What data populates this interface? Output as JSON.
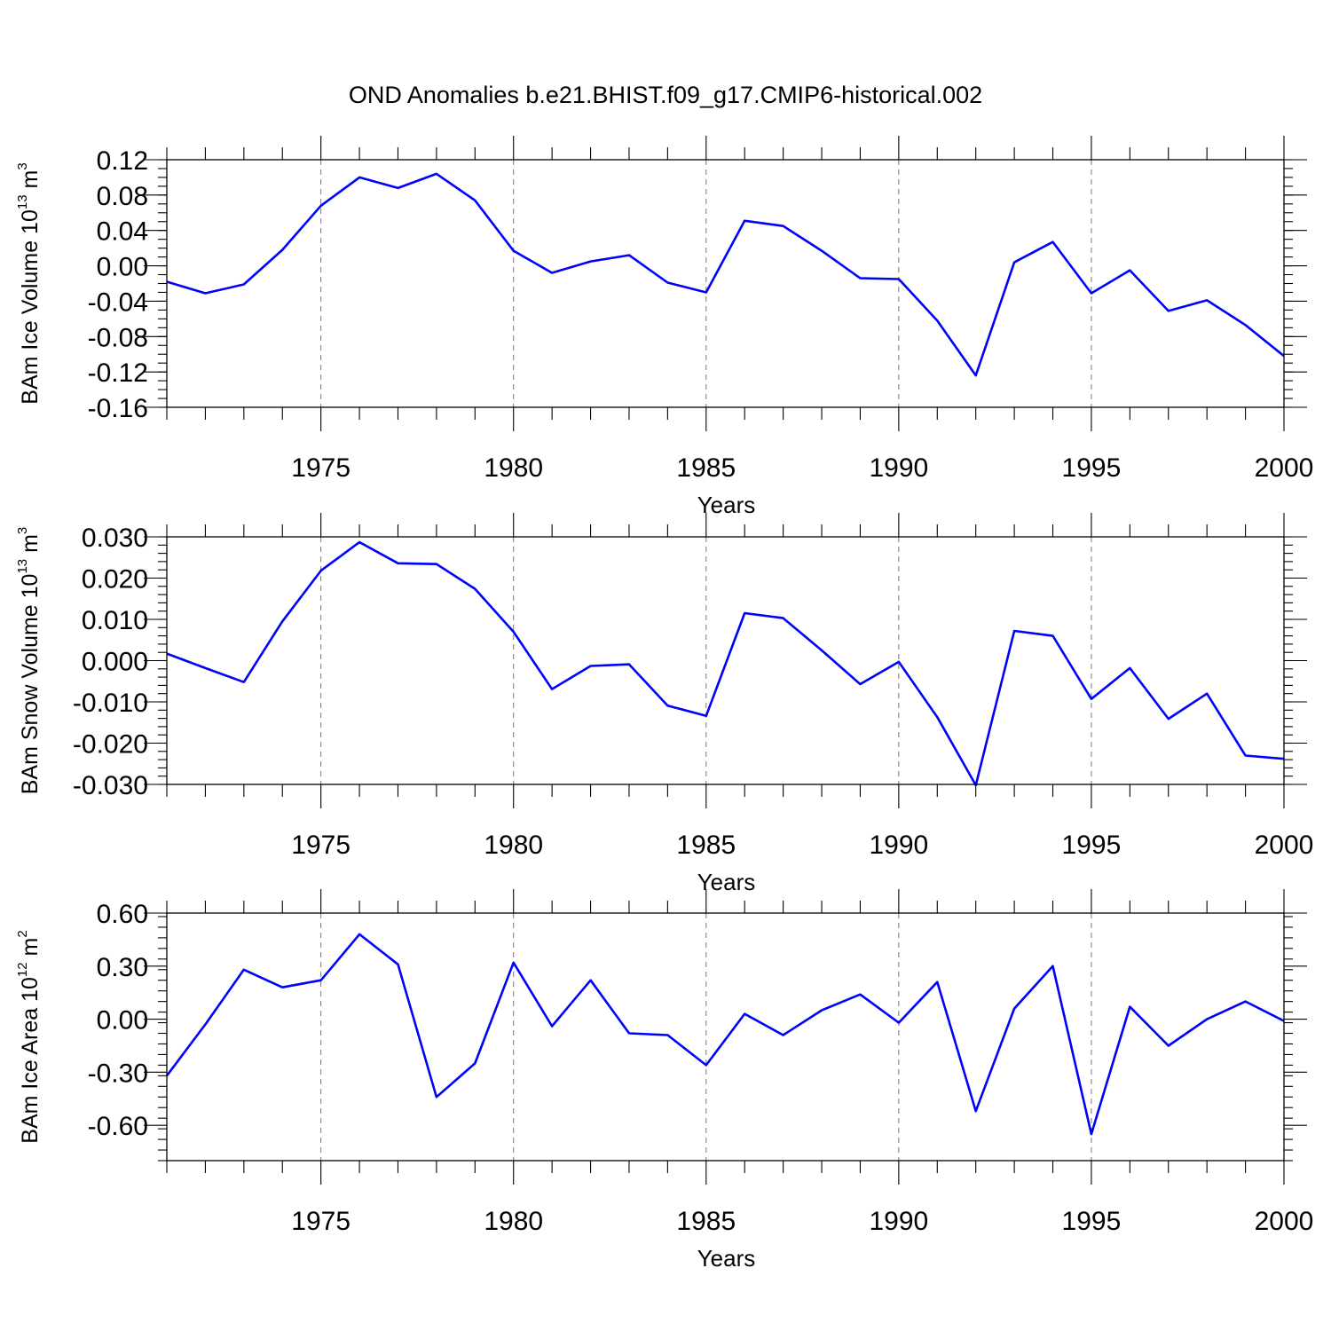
{
  "title": "OND Anomalies b.e21.BHIST.f09_g17.CMIP6-historical.002",
  "chart_data": [
    {
      "type": "line",
      "ylabel": "BAm Ice Volume 10",
      "ylabel_exp": "13",
      "ylabel_unit": " m",
      "ylabel_unit_exp": "3",
      "xlabel": "Years",
      "xlim": [
        1971,
        2000
      ],
      "ylim": [
        -0.16,
        0.12
      ],
      "xticks": [
        "1975",
        "1980",
        "1985",
        "1990",
        "1995",
        "2000"
      ],
      "yticks": [
        "0.12",
        "0.08",
        "0.04",
        "0.00",
        "-0.04",
        "-0.08",
        "-0.12",
        "-0.16"
      ],
      "line_color": "#0000ff",
      "x": [
        1971,
        1972,
        1973,
        1974,
        1975,
        1976,
        1977,
        1978,
        1979,
        1980,
        1981,
        1982,
        1983,
        1984,
        1985,
        1986,
        1987,
        1988,
        1989,
        1990,
        1991,
        1992,
        1993,
        1994,
        1995,
        1996,
        1997,
        1998,
        1999,
        2000
      ],
      "values": [
        -0.018,
        -0.031,
        -0.021,
        0.018,
        0.068,
        0.1,
        0.088,
        0.104,
        0.074,
        0.017,
        -0.008,
        0.005,
        0.012,
        -0.019,
        -0.03,
        0.051,
        0.045,
        0.017,
        -0.014,
        -0.015,
        -0.062,
        -0.124,
        0.004,
        0.027,
        -0.031,
        -0.005,
        -0.051,
        -0.039,
        -0.067,
        -0.102
      ]
    },
    {
      "type": "line",
      "ylabel": "BAm Snow Volume 10",
      "ylabel_exp": "13",
      "ylabel_unit": " m",
      "ylabel_unit_exp": "3",
      "xlabel": "Years",
      "xlim": [
        1971,
        2000
      ],
      "ylim": [
        -0.03,
        0.03
      ],
      "xticks": [
        "1975",
        "1980",
        "1985",
        "1990",
        "1995",
        "2000"
      ],
      "yticks": [
        "0.030",
        "0.020",
        "0.010",
        "0.000",
        "-0.010",
        "-0.020",
        "-0.030"
      ],
      "line_color": "#0000ff",
      "x": [
        1971,
        1972,
        1973,
        1974,
        1975,
        1976,
        1977,
        1978,
        1979,
        1980,
        1981,
        1982,
        1983,
        1984,
        1985,
        1986,
        1987,
        1988,
        1989,
        1990,
        1991,
        1992,
        1993,
        1994,
        1995,
        1996,
        1997,
        1998,
        1999,
        2000
      ],
      "values": [
        0.0017,
        -0.0018,
        -0.0052,
        0.0095,
        0.0218,
        0.0287,
        0.0236,
        0.0234,
        0.0174,
        0.007,
        -0.0069,
        -0.0013,
        -0.0009,
        -0.0109,
        -0.0134,
        0.0115,
        0.0103,
        0.0025,
        -0.0057,
        -0.0003,
        -0.0137,
        -0.0302,
        0.0072,
        0.006,
        -0.0093,
        -0.0018,
        -0.0141,
        -0.008,
        -0.023,
        -0.0238
      ]
    },
    {
      "type": "line",
      "ylabel": "BAm Ice Area 10",
      "ylabel_exp": "12",
      "ylabel_unit": " m",
      "ylabel_unit_exp": "2",
      "xlabel": "Years",
      "xlim": [
        1971,
        2000
      ],
      "ylim": [
        -0.8,
        0.6
      ],
      "xticks": [
        "1975",
        "1980",
        "1985",
        "1990",
        "1995",
        "2000"
      ],
      "yticks": [
        "0.60",
        "0.30",
        "0.00",
        "-0.30",
        "-0.60"
      ],
      "line_color": "#0000ff",
      "x": [
        1971,
        1972,
        1973,
        1974,
        1975,
        1976,
        1977,
        1978,
        1979,
        1980,
        1981,
        1982,
        1983,
        1984,
        1985,
        1986,
        1987,
        1988,
        1989,
        1990,
        1991,
        1992,
        1993,
        1994,
        1995,
        1996,
        1997,
        1998,
        1999,
        2000
      ],
      "values": [
        -0.32,
        -0.03,
        0.28,
        0.18,
        0.22,
        0.48,
        0.31,
        -0.44,
        -0.25,
        0.32,
        -0.04,
        0.22,
        -0.08,
        -0.09,
        -0.26,
        0.03,
        -0.09,
        0.05,
        0.14,
        -0.02,
        0.21,
        -0.52,
        0.06,
        0.3,
        -0.65,
        0.07,
        -0.15,
        0.0,
        0.1,
        -0.01
      ]
    }
  ]
}
